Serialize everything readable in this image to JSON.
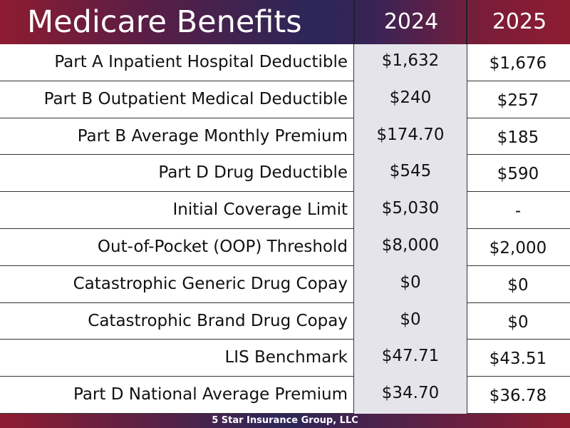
{
  "header": {
    "title": "Medicare Benefits",
    "columns": [
      "2024",
      "2025"
    ]
  },
  "table": {
    "rows": [
      [
        "Part A Inpatient Hospital Deductible",
        "$1,632",
        "$1,676"
      ],
      [
        "Part B Outpatient Medical Deductible",
        "$240",
        "$257"
      ],
      [
        "Part B Average Monthly Premium",
        "$174.70",
        "$185"
      ],
      [
        "Part D Drug Deductible",
        "$545",
        "$590"
      ],
      [
        "Initial Coverage Limit",
        "$5,030",
        "-"
      ],
      [
        "Out-of-Pocket (OOP) Threshold",
        "$8,000",
        "$2,000"
      ],
      [
        "Catastrophic Generic Drug Copay",
        "$0",
        "$0"
      ],
      [
        "Catastrophic Brand Drug Copay",
        "$0",
        "$0"
      ],
      [
        "LIS Benchmark",
        "$47.71",
        "$43.51"
      ],
      [
        "Part D National Average Premium",
        "$34.70",
        "$36.78"
      ]
    ]
  },
  "footer": "5 Star Insurance Group, LLC"
}
